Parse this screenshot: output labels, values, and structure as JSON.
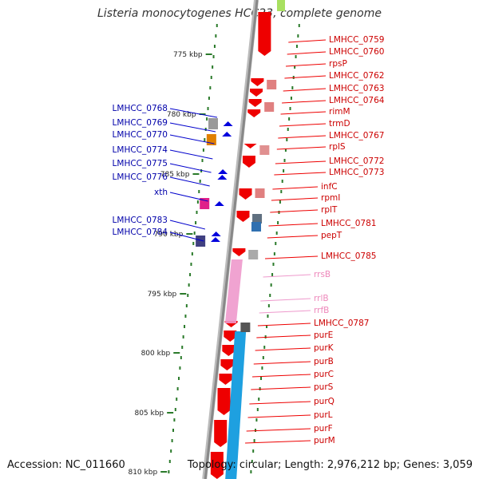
{
  "title": "Listeria monocytogenes HCC23, complete genome",
  "accession": "Accession: NC_011660",
  "summary": "Topology: circular; Length: 2,976,212 bp; Genes: 3,059",
  "colors": {
    "forward_cds": "#ee0000",
    "reverse_cds": "#0000dd",
    "rrna": "#ee99cc",
    "backbone": "#888888",
    "blue_band": "#1ea0e0",
    "tick": "#2a7a2a"
  },
  "scale": [
    {
      "label": "775 kbp"
    },
    {
      "label": "780 kbp"
    },
    {
      "label": "785 kbp"
    },
    {
      "label": "790 kbp"
    },
    {
      "label": "795 kbp"
    },
    {
      "label": "800 kbp"
    },
    {
      "label": "805 kbp"
    },
    {
      "label": "810 kbp"
    }
  ],
  "right_genes": [
    {
      "name": "LMHCC_0759",
      "type": "cds"
    },
    {
      "name": "LMHCC_0760",
      "type": "cds"
    },
    {
      "name": "rpsP",
      "type": "cds"
    },
    {
      "name": "LMHCC_0762",
      "type": "cds"
    },
    {
      "name": "LMHCC_0763",
      "type": "cds"
    },
    {
      "name": "LMHCC_0764",
      "type": "cds"
    },
    {
      "name": "rimM",
      "type": "cds"
    },
    {
      "name": "trmD",
      "type": "cds"
    },
    {
      "name": "LMHCC_0767",
      "type": "cds"
    },
    {
      "name": "rplS",
      "type": "cds"
    },
    {
      "name": "LMHCC_0772",
      "type": "cds"
    },
    {
      "name": "LMHCC_0773",
      "type": "cds"
    },
    {
      "name": "infC",
      "type": "cds"
    },
    {
      "name": "rpmI",
      "type": "cds"
    },
    {
      "name": "rplT",
      "type": "cds"
    },
    {
      "name": "LMHCC_0781",
      "type": "cds"
    },
    {
      "name": "pepT",
      "type": "cds"
    },
    {
      "name": "LMHCC_0785",
      "type": "cds"
    },
    {
      "name": "rrsB",
      "type": "rrna"
    },
    {
      "name": "rrlB",
      "type": "rrna"
    },
    {
      "name": "rrfB",
      "type": "rrna"
    },
    {
      "name": "LMHCC_0787",
      "type": "cds"
    },
    {
      "name": "purE",
      "type": "cds"
    },
    {
      "name": "purK",
      "type": "cds"
    },
    {
      "name": "purB",
      "type": "cds"
    },
    {
      "name": "purC",
      "type": "cds"
    },
    {
      "name": "purS",
      "type": "cds"
    },
    {
      "name": "purQ",
      "type": "cds"
    },
    {
      "name": "purL",
      "type": "cds"
    },
    {
      "name": "purF",
      "type": "cds"
    },
    {
      "name": "purM",
      "type": "cds"
    }
  ],
  "left_genes": [
    {
      "name": "LMHCC_0768"
    },
    {
      "name": "LMHCC_0769"
    },
    {
      "name": "LMHCC_0770"
    },
    {
      "name": "LMHCC_0774"
    },
    {
      "name": "LMHCC_0775"
    },
    {
      "name": "LMHCC_0776"
    },
    {
      "name": "xth"
    },
    {
      "name": "LMHCC_0783"
    },
    {
      "name": "LMHCC_0784"
    }
  ]
}
